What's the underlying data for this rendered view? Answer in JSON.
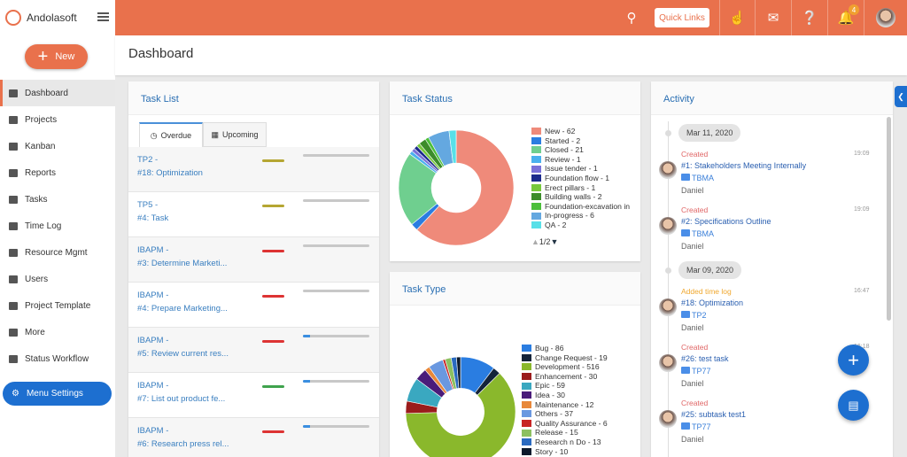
{
  "app": {
    "name": "Andolasoft"
  },
  "header": {
    "quick_links": "Quick Links",
    "notification_count": "4"
  },
  "sidebar": {
    "new_label": "New",
    "items": [
      {
        "label": "Dashboard"
      },
      {
        "label": "Projects"
      },
      {
        "label": "Kanban"
      },
      {
        "label": "Reports"
      },
      {
        "label": "Tasks"
      },
      {
        "label": "Time Log"
      },
      {
        "label": "Resource Mgmt"
      },
      {
        "label": "Users"
      },
      {
        "label": "Project Template"
      },
      {
        "label": "More"
      },
      {
        "label": "Status Workflow"
      }
    ],
    "menu_settings": "Menu Settings"
  },
  "page": {
    "title": "Dashboard"
  },
  "task_list": {
    "title": "Task List",
    "tabs": [
      "Overdue",
      "Upcoming"
    ],
    "rows": [
      {
        "project": "TP2 -",
        "task": "#18: Optimization",
        "priority": "#b5a632",
        "progress": 0
      },
      {
        "project": "TP5 -",
        "task": "#4: Task",
        "priority": "#b5a632",
        "progress": 0
      },
      {
        "project": "IBAPM -",
        "task": "#3: Determine Marketi...",
        "priority": "#dd3333",
        "progress": 0
      },
      {
        "project": "IBAPM -",
        "task": "#4: Prepare Marketing...",
        "priority": "#dd3333",
        "progress": 0
      },
      {
        "project": "IBAPM -",
        "task": "#5: Review current res...",
        "priority": "#dd3333",
        "progress": 10
      },
      {
        "project": "IBAPM -",
        "task": "#7: List out product fe...",
        "priority": "#3fa34d",
        "progress": 10
      },
      {
        "project": "IBAPM -",
        "task": "#6: Research press rel...",
        "priority": "#dd3333",
        "progress": 10
      }
    ]
  },
  "task_status": {
    "title": "Task Status",
    "pager": "1/2"
  },
  "task_type": {
    "title": "Task Type"
  },
  "chart_data": [
    {
      "type": "pie",
      "title": "Task Status",
      "series": [
        {
          "name": "New",
          "value": 62,
          "color": "#ef8a7a",
          "label": "New - 62"
        },
        {
          "name": "Started",
          "value": 2,
          "color": "#2a7de1",
          "label": "Started - 2"
        },
        {
          "name": "Closed",
          "value": 21,
          "color": "#6fcf8f",
          "label": "Closed - 21"
        },
        {
          "name": "Review",
          "value": 1,
          "color": "#4ab0ee",
          "label": "Review - 1"
        },
        {
          "name": "Issue tender",
          "value": 1,
          "color": "#7a70d8",
          "label": "Issue tender - 1"
        },
        {
          "name": "Foundation flow",
          "value": 1,
          "color": "#1c2a8c",
          "label": "Foundation flow - 1"
        },
        {
          "name": "Erect pillars",
          "value": 1,
          "color": "#78c83c",
          "label": "Erect pillars - 1"
        },
        {
          "name": "Building walls",
          "value": 2,
          "color": "#3c8c2a",
          "label": "Building walls - 2"
        },
        {
          "name": "Foundation-excavation in",
          "value": 1,
          "color": "#4cbf3a",
          "label": "Foundation-excavation in"
        },
        {
          "name": "In-progress",
          "value": 6,
          "color": "#64a8e0",
          "label": "In-progress - 6"
        },
        {
          "name": "QA",
          "value": 2,
          "color": "#58e0e8",
          "label": "QA - 2"
        }
      ]
    },
    {
      "type": "pie",
      "title": "Task Type",
      "series": [
        {
          "name": "Bug",
          "value": 86,
          "color": "#2a7de1",
          "label": "Bug - 86"
        },
        {
          "name": "Change Request",
          "value": 19,
          "color": "#14243a",
          "label": "Change Request - 19"
        },
        {
          "name": "Development",
          "value": 516,
          "color": "#8ab82c",
          "label": "Development - 516"
        },
        {
          "name": "Enhancement",
          "value": 30,
          "color": "#9a1c1c",
          "label": "Enhancement - 30"
        },
        {
          "name": "Epic",
          "value": 59,
          "color": "#3aa8c0",
          "label": "Epic - 59"
        },
        {
          "name": "Idea",
          "value": 30,
          "color": "#4a1c7a",
          "label": "Idea - 30"
        },
        {
          "name": "Maintenance",
          "value": 12,
          "color": "#e8883a",
          "label": "Maintenance - 12"
        },
        {
          "name": "Others",
          "value": 37,
          "color": "#6a98e0",
          "label": "Others - 37"
        },
        {
          "name": "Quality Assurance",
          "value": 6,
          "color": "#c82424",
          "label": "Quality Assurance - 6"
        },
        {
          "name": "Release",
          "value": 15,
          "color": "#8cc060",
          "label": "Release - 15"
        },
        {
          "name": "Research n Do",
          "value": 13,
          "color": "#2a6ac0",
          "label": "Research n Do - 13"
        },
        {
          "name": "Story",
          "value": 10,
          "color": "#0c1a2c",
          "label": "Story - 10"
        }
      ]
    }
  ],
  "activity": {
    "title": "Activity",
    "groups": [
      {
        "date": "Mar 11, 2020",
        "items": [
          {
            "action": "Created",
            "color": "#e06666",
            "time": "19:09",
            "task": "#1: Stakeholders Meeting Internally",
            "project": "TBMA",
            "user": "Daniel"
          },
          {
            "action": "Created",
            "color": "#e06666",
            "time": "19:09",
            "task": "#2: Specifications Outline",
            "project": "TBMA",
            "user": "Daniel"
          }
        ]
      },
      {
        "date": "Mar 09, 2020",
        "items": [
          {
            "action": "Added time log",
            "color": "#f0a830",
            "time": "16:47",
            "task": "#18: Optimization",
            "project": "TP2",
            "user": "Daniel"
          },
          {
            "action": "Created",
            "color": "#e06666",
            "time": "16:18",
            "task": "#26: test task",
            "project": "TP77",
            "user": "Daniel"
          },
          {
            "action": "Created",
            "color": "#e06666",
            "time": "",
            "task": "#25: subtask test1",
            "project": "TP77",
            "user": "Daniel"
          }
        ]
      }
    ]
  }
}
